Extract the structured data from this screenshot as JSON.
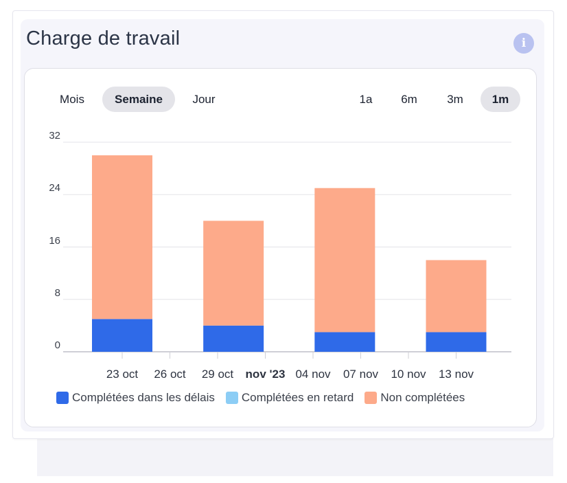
{
  "widget": {
    "title": "Charge de travail",
    "info_icon": "info-icon"
  },
  "granularity_tabs": [
    {
      "label": "Mois",
      "active": false
    },
    {
      "label": "Semaine",
      "active": true
    },
    {
      "label": "Jour",
      "active": false
    }
  ],
  "range_tabs": [
    {
      "label": "1a",
      "active": false
    },
    {
      "label": "6m",
      "active": false
    },
    {
      "label": "3m",
      "active": false
    },
    {
      "label": "1m",
      "active": true
    }
  ],
  "colors": {
    "on_time": "#2f6ae8",
    "late": "#8ccdf5",
    "not_completed": "#fdaa8a",
    "grid": "#e3e3e8"
  },
  "chart_data": {
    "type": "bar",
    "stacked": true,
    "ylim": [
      0,
      32
    ],
    "yticks": [
      0,
      8,
      16,
      24,
      32
    ],
    "x_tick_labels": [
      {
        "label": "23 oct",
        "date": "2023-10-23",
        "bold": false
      },
      {
        "label": "26 oct",
        "date": "2023-10-26",
        "bold": false
      },
      {
        "label": "29 oct",
        "date": "2023-10-29",
        "bold": false
      },
      {
        "label": "nov '23",
        "date": "2023-11-01",
        "bold": true
      },
      {
        "label": "04 nov",
        "date": "2023-11-04",
        "bold": false
      },
      {
        "label": "07 nov",
        "date": "2023-11-07",
        "bold": false
      },
      {
        "label": "10 nov",
        "date": "2023-11-10",
        "bold": false
      },
      {
        "label": "13 nov",
        "date": "2023-11-13",
        "bold": false
      }
    ],
    "weeks": [
      "2023-10-23",
      "2023-10-30",
      "2023-11-06",
      "2023-11-13"
    ],
    "series": [
      {
        "name": "Complétées dans les délais",
        "values": [
          5,
          4,
          3,
          3
        ]
      },
      {
        "name": "Complétées en retard",
        "values": [
          0,
          0,
          0,
          0
        ]
      },
      {
        "name": "Non complétées",
        "values": [
          25,
          16,
          22,
          11
        ]
      }
    ],
    "legend_position": "bottom",
    "grid": true
  }
}
